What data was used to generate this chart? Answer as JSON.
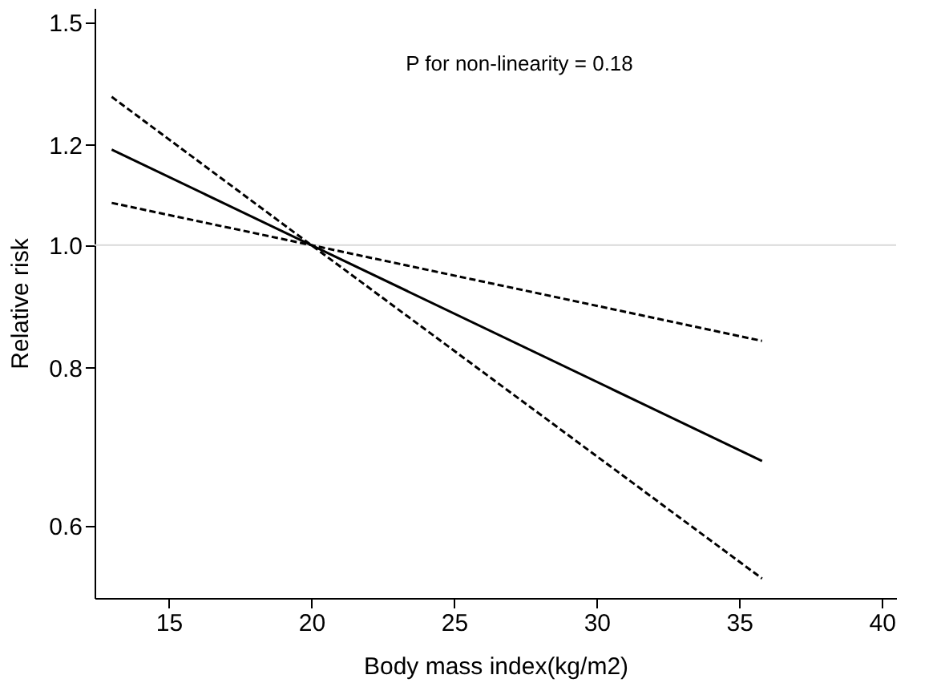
{
  "chart_data": {
    "type": "line",
    "xlabel": "Body mass index(kg/m2)",
    "ylabel": "Relative risk",
    "annotations": [
      "P for non-linearity = 0.18"
    ],
    "x": [
      13,
      20,
      35.8
    ],
    "series": [
      {
        "color": "#000000",
        "line_style": "dashed",
        "values": [
          1.31,
          1.0,
          0.545
        ]
      },
      {
        "color": "#000000",
        "line_style": "solid",
        "values": [
          1.19,
          1.0,
          0.675
        ]
      },
      {
        "color": "#000000",
        "line_style": "dashed",
        "values": [
          1.08,
          1.0,
          0.84
        ]
      }
    ],
    "xlim": [
      12.4,
      40.5
    ],
    "xticks": [
      15,
      20,
      25,
      30,
      35,
      40
    ],
    "ylim": [
      0.526,
      1.54
    ],
    "yticks": [
      {
        "value": 0.6,
        "label": "0.6"
      },
      {
        "value": 0.8,
        "label": "0.8"
      },
      {
        "value": 1.0,
        "label": "1.0"
      },
      {
        "value": 1.2,
        "label": "1.2"
      },
      {
        "value": 1.5,
        "label": "1.5"
      }
    ],
    "log": "y",
    "grid": false,
    "ref_lines": [
      {
        "axis": "y",
        "value": 1.0,
        "color": "#d9d9d9",
        "line_style": "solid"
      }
    ]
  }
}
